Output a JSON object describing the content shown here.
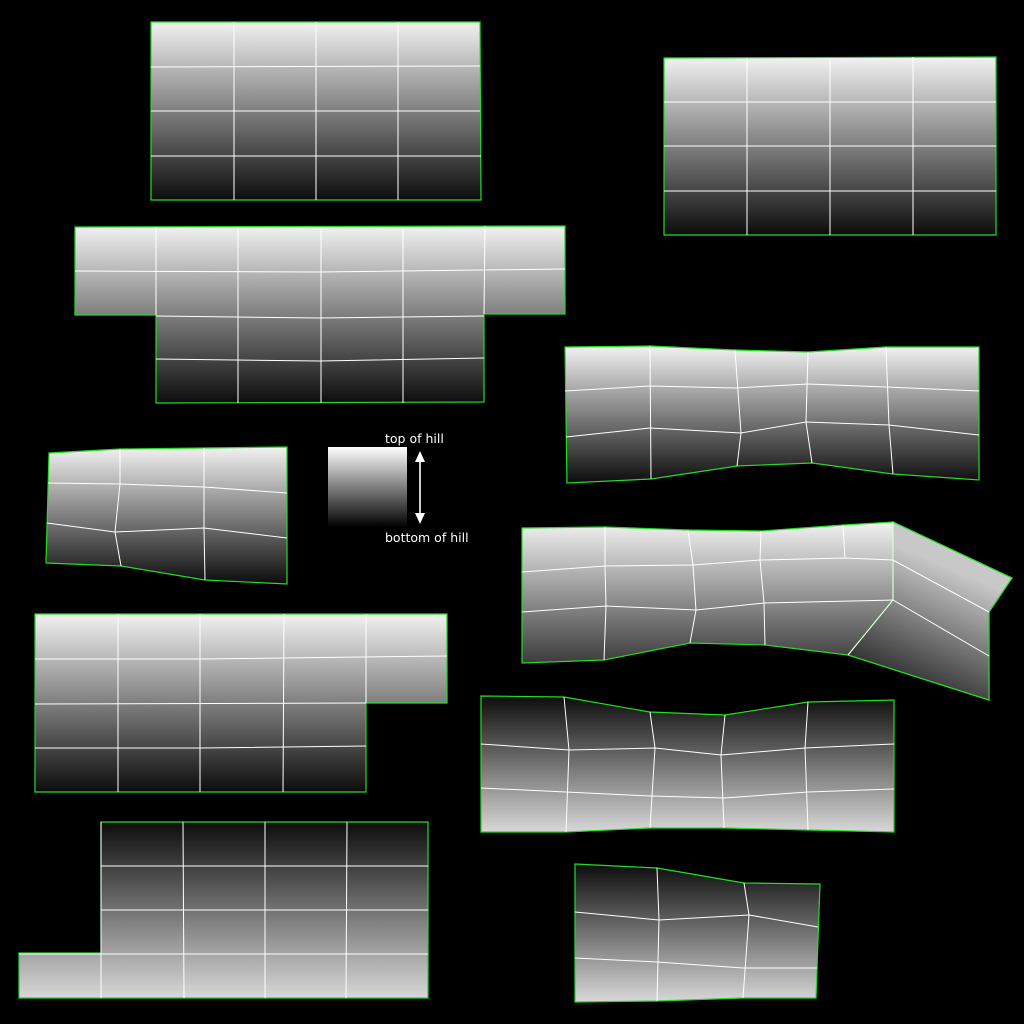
{
  "legend": {
    "top_label": "top of hill",
    "bottom_label": "bottom of hill",
    "gradient_top_color": "#ffffff",
    "gradient_bottom_color": "#000000"
  },
  "colors": {
    "background": "#000000",
    "island_outline": "#22dd22",
    "grid_lines": "#ffffff",
    "light_shade": "#f2f2f2",
    "dark_shade": "#0c0c0c"
  }
}
